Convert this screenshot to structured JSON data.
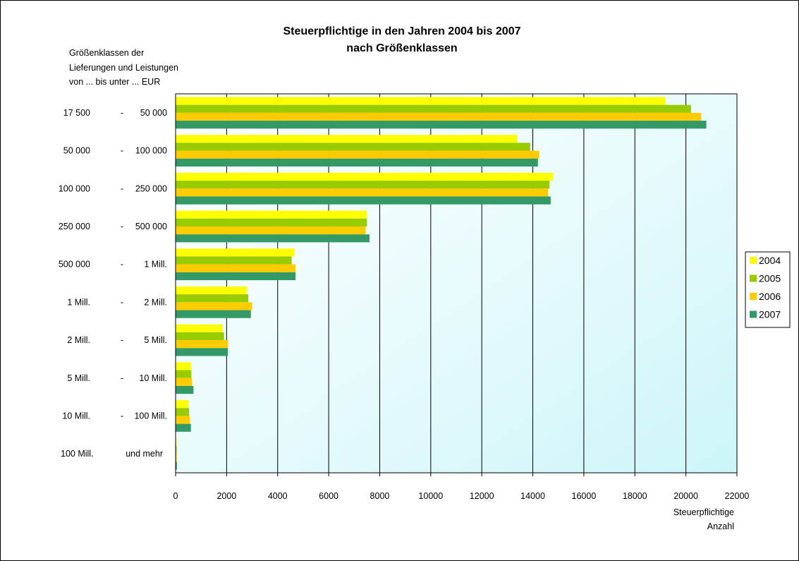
{
  "chart_data": {
    "type": "bar",
    "orientation": "horizontal",
    "title": [
      "Steuerpflichtige in den Jahren 2004 bis 2007",
      "nach Größenklassen"
    ],
    "category_axis_title": [
      "Größenklassen der",
      "Lieferungen und Leistungen",
      "von ... bis unter ... EUR"
    ],
    "value_axis_title": [
      "Steuerpflichtige",
      "Anzahl"
    ],
    "categories": [
      {
        "from": "17 500",
        "sep": "-",
        "to": "50 000"
      },
      {
        "from": "50 000",
        "sep": "-",
        "to": "100 000"
      },
      {
        "from": "100 000",
        "sep": "-",
        "to": "250 000"
      },
      {
        "from": "250 000",
        "sep": "-",
        "to": "500 000"
      },
      {
        "from": "500 000",
        "sep": "-",
        "to": "1 Mill."
      },
      {
        "from": "1 Mill.",
        "sep": "-",
        "to": "2 Mill."
      },
      {
        "from": "2 Mill.",
        "sep": "-",
        "to": "5 Mill."
      },
      {
        "from": "5 Mill.",
        "sep": "-",
        "to": "10 Mill."
      },
      {
        "from": "10 Mill.",
        "sep": "-",
        "to": "100 Mill."
      },
      {
        "from": "100 Mill.",
        "sep": "",
        "to": "und mehr"
      }
    ],
    "series": [
      {
        "name": "2004",
        "color": "#ffff00",
        "values": [
          19200,
          13400,
          14800,
          7500,
          4650,
          2800,
          1850,
          600,
          500,
          40
        ]
      },
      {
        "name": "2005",
        "color": "#99cc00",
        "values": [
          20200,
          13900,
          14650,
          7500,
          4550,
          2850,
          1900,
          620,
          530,
          40
        ]
      },
      {
        "name": "2006",
        "color": "#ffcc00",
        "values": [
          20600,
          14250,
          14600,
          7450,
          4700,
          3000,
          2050,
          650,
          560,
          45
        ]
      },
      {
        "name": "2007",
        "color": "#339966",
        "values": [
          20800,
          14200,
          14700,
          7600,
          4700,
          2950,
          2050,
          700,
          600,
          50
        ]
      }
    ],
    "xlim": [
      0,
      22000
    ],
    "xticks": [
      0,
      2000,
      4000,
      6000,
      8000,
      10000,
      12000,
      14000,
      16000,
      18000,
      20000,
      22000
    ],
    "grid": true,
    "legend_position": "right"
  }
}
